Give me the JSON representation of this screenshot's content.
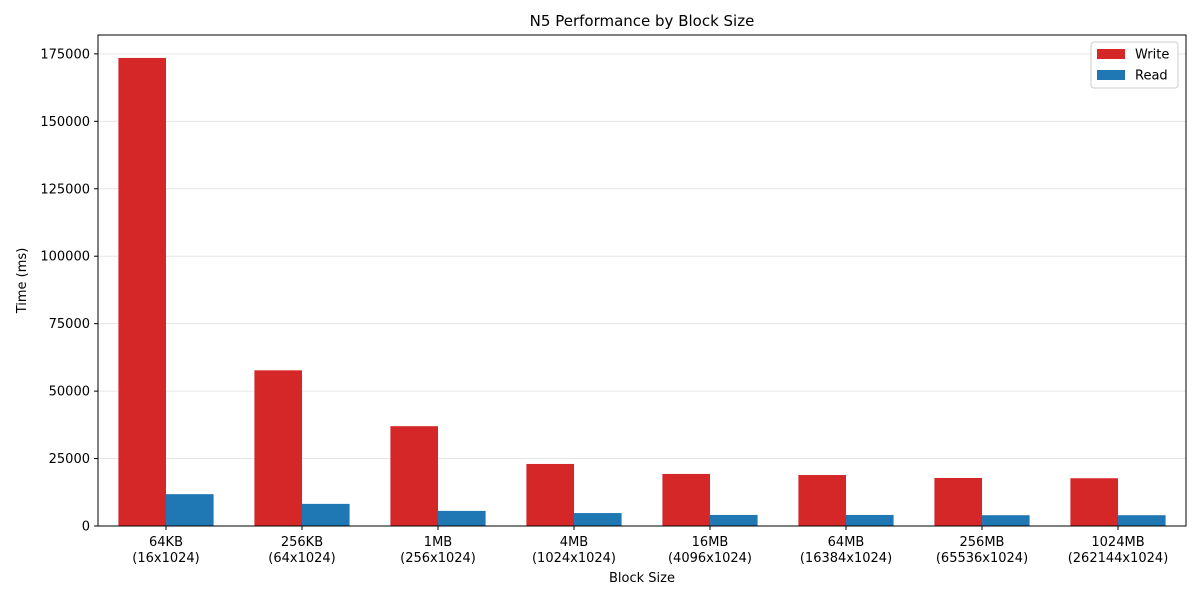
{
  "chart_data": {
    "type": "bar",
    "title": "N5 Performance by Block Size",
    "xlabel": "Block Size",
    "ylabel": "Time (ms)",
    "categories": [
      [
        "64KB",
        "(16x1024)"
      ],
      [
        "256KB",
        "(64x1024)"
      ],
      [
        "1MB",
        "(256x1024)"
      ],
      [
        "4MB",
        "(1024x1024)"
      ],
      [
        "16MB",
        "(4096x1024)"
      ],
      [
        "64MB",
        "(16384x1024)"
      ],
      [
        "256MB",
        "(65536x1024)"
      ],
      [
        "1024MB",
        "(262144x1024)"
      ]
    ],
    "series": [
      {
        "name": "Write",
        "color": "#d62728",
        "values": [
          173500,
          57700,
          37000,
          23000,
          19300,
          18900,
          17800,
          17700
        ]
      },
      {
        "name": "Read",
        "color": "#1f77b4",
        "values": [
          11800,
          8200,
          5600,
          4800,
          4100,
          4100,
          4000,
          4000
        ]
      }
    ],
    "ylim": [
      0,
      182000
    ],
    "yticks": [
      0,
      25000,
      50000,
      75000,
      100000,
      125000,
      150000,
      175000
    ],
    "grid": "y",
    "legend_position": "top-right"
  }
}
